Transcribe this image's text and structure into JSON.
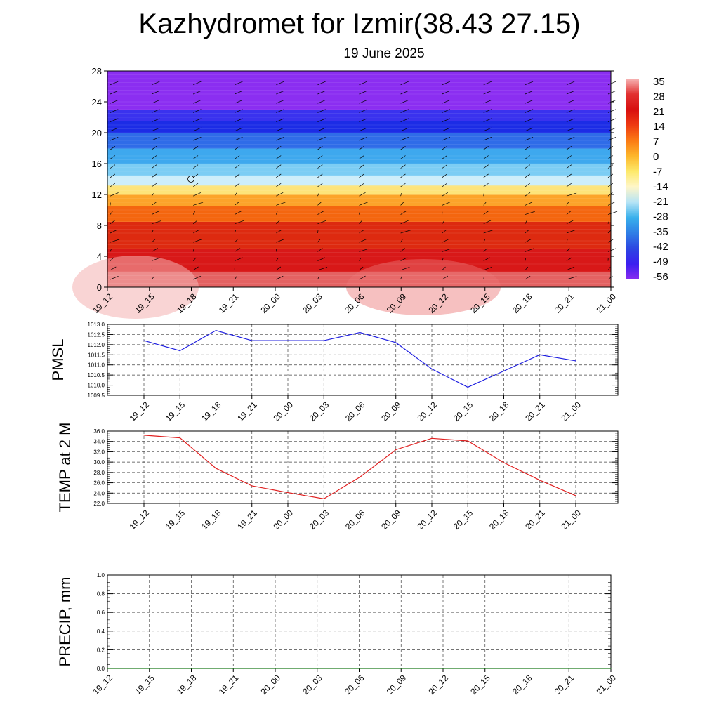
{
  "header": {
    "title": "Kazhydromet for Izmir(38.43 27.15)",
    "subtitle": "19 June 2025"
  },
  "chart_data": [
    {
      "type": "heatmap",
      "name": "vertical-section",
      "x_ticks": [
        "19_12",
        "19_15",
        "19_18",
        "19_21",
        "20_00",
        "20_03",
        "20_06",
        "20_09",
        "20_12",
        "20_15",
        "20_18",
        "20_21",
        "21_00"
      ],
      "y_ticks": [
        "0",
        "4",
        "8",
        "12",
        "16",
        "20",
        "24",
        "28"
      ],
      "ylim": [
        0,
        28
      ],
      "colorbar": {
        "labels": [
          "35",
          "28",
          "21",
          "14",
          "7",
          "0",
          "-7",
          "-14",
          "-21",
          "-28",
          "-35",
          "-42",
          "-49",
          "-56"
        ],
        "colors": [
          "#f7b6b6",
          "#e23232",
          "#d80f0f",
          "#ee3a12",
          "#fb7a14",
          "#fdb62a",
          "#fde96a",
          "#fff6c8",
          "#b6e4f6",
          "#39b0ec",
          "#2f7ee6",
          "#2c46e2",
          "#3b1ff0",
          "#8a2cf0"
        ]
      },
      "bands": [
        {
          "to": 2,
          "color": "#e46262"
        },
        {
          "to": 5,
          "color": "#d81818"
        },
        {
          "to": 8.5,
          "color": "#dd2a10"
        },
        {
          "to": 10.5,
          "color": "#f4660f"
        },
        {
          "to": 12,
          "color": "#fca42a"
        },
        {
          "to": 13.2,
          "color": "#fde47a"
        },
        {
          "to": 14.5,
          "color": "#cdeefa"
        },
        {
          "to": 16,
          "color": "#7ccdf4"
        },
        {
          "to": 18,
          "color": "#3ea8ee"
        },
        {
          "to": 20,
          "color": "#2f6ce8"
        },
        {
          "to": 21.5,
          "color": "#1c2ce6"
        },
        {
          "to": 23,
          "color": "#3a32ee"
        },
        {
          "to": 28,
          "color": "#8b2ef1"
        }
      ]
    },
    {
      "type": "line",
      "ylabel": "PMSL",
      "categories": [
        "19_12",
        "19_15",
        "19_18",
        "19_21",
        "20_00",
        "20_03",
        "20_06",
        "20_09",
        "20_12",
        "20_15",
        "20_18",
        "20_21",
        "21_00"
      ],
      "series": [
        {
          "color": "#1f1fe0",
          "values": [
            1012.2,
            1011.7,
            1012.7,
            1012.2,
            1012.2,
            1012.2,
            1012.6,
            1012.1,
            1010.8,
            1009.9,
            1010.7,
            1011.5,
            1011.2
          ]
        }
      ],
      "ylim": [
        1009.5,
        1013.0
      ],
      "y_ticks": [
        "1009.5",
        "1010.0",
        "1010.5",
        "1011.0",
        "1011.5",
        "1012.0",
        "1012.5",
        "1013.0"
      ],
      "grid": true
    },
    {
      "type": "line",
      "ylabel": "TEMP at 2 M",
      "categories": [
        "19_12",
        "19_15",
        "19_18",
        "19_21",
        "20_00",
        "20_03",
        "20_06",
        "20_09",
        "20_12",
        "20_15",
        "20_18",
        "20_21",
        "21_00"
      ],
      "series": [
        {
          "color": "#e02020",
          "values": [
            35.2,
            34.7,
            28.8,
            25.4,
            24.1,
            22.9,
            27.1,
            32.4,
            34.6,
            34.1,
            29.9,
            26.5,
            23.5
          ]
        }
      ],
      "ylim": [
        22.0,
        36.0
      ],
      "y_ticks": [
        "22.0",
        "24.0",
        "26.0",
        "28.0",
        "30.0",
        "32.0",
        "34.0",
        "36.0"
      ],
      "grid": true
    },
    {
      "type": "line",
      "ylabel": "PRECIP, mm",
      "x_ticks": [
        "19_12",
        "19_15",
        "19_18",
        "19_21",
        "20_00",
        "20_03",
        "20_06",
        "20_09",
        "20_12",
        "20_15",
        "20_18",
        "20_21",
        "21_00"
      ],
      "series": [
        {
          "color": "#1a7a1a",
          "values": [
            0,
            0,
            0,
            0,
            0,
            0,
            0,
            0,
            0,
            0,
            0,
            0,
            0
          ]
        }
      ],
      "ylim": [
        0.0,
        1.0
      ],
      "y_ticks": [
        "0.0",
        "0.2",
        "0.4",
        "0.6",
        "0.8",
        "1.0"
      ],
      "grid": true
    }
  ]
}
